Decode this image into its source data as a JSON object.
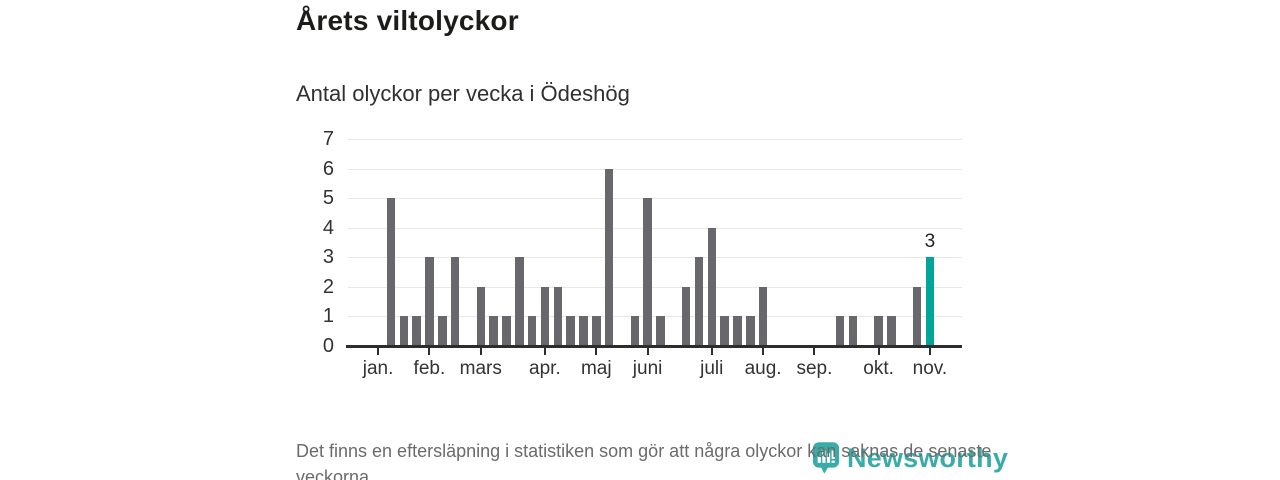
{
  "title": "Årets viltolyckor",
  "subtitle": "Antal olyckor per vecka i Ödeshög",
  "footnote": "Det finns en eftersläpning i statistiken som gör att några olyckor kan saknas de senaste veckorna.",
  "branding": {
    "logo_text": "Newsworthy",
    "logo_icon": "bar-chart-pin-icon"
  },
  "colors": {
    "bar": "#67676c",
    "highlight": "#00a69a",
    "grid": "#e8e8e8",
    "axis": "#2d2d2d",
    "label_text": "#333333",
    "footnote_text": "#6b6b6b",
    "logo_teal": "#2aa5a1"
  },
  "chart_data": {
    "type": "bar",
    "title": "Årets viltolyckor",
    "subtitle": "Antal olyckor per vecka i Ödeshög",
    "xlabel": "",
    "ylabel": "",
    "ylim": [
      0,
      7
    ],
    "yticks": [
      0,
      1,
      2,
      3,
      4,
      5,
      6,
      7
    ],
    "grid": true,
    "x_unit": "vecka",
    "values": [
      0,
      0,
      0,
      5,
      1,
      1,
      3,
      1,
      3,
      0,
      2,
      1,
      1,
      3,
      1,
      2,
      2,
      1,
      1,
      1,
      6,
      0,
      1,
      5,
      1,
      0,
      2,
      3,
      4,
      1,
      1,
      1,
      2,
      0,
      0,
      0,
      0,
      0,
      1,
      1,
      0,
      1,
      1,
      0,
      2,
      3,
      0,
      0
    ],
    "highlight_index": 45,
    "highlight_value_label": "3",
    "month_ticks": [
      {
        "label": "jan.",
        "index": 2
      },
      {
        "label": "feb.",
        "index": 6
      },
      {
        "label": "mars",
        "index": 10
      },
      {
        "label": "apr.",
        "index": 15
      },
      {
        "label": "maj",
        "index": 19
      },
      {
        "label": "juni",
        "index": 23
      },
      {
        "label": "juli",
        "index": 28
      },
      {
        "label": "aug.",
        "index": 32
      },
      {
        "label": "sep.",
        "index": 36
      },
      {
        "label": "okt.",
        "index": 41
      },
      {
        "label": "nov.",
        "index": 45
      }
    ]
  }
}
